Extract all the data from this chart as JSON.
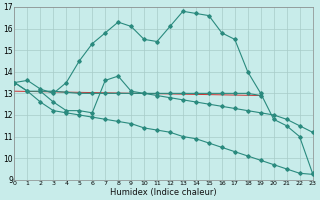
{
  "xlabel": "Humidex (Indice chaleur)",
  "xlim": [
    0,
    23
  ],
  "ylim": [
    9,
    17
  ],
  "yticks": [
    9,
    10,
    11,
    12,
    13,
    14,
    15,
    16,
    17
  ],
  "xticks": [
    0,
    1,
    2,
    3,
    4,
    5,
    6,
    7,
    8,
    9,
    10,
    11,
    12,
    13,
    14,
    15,
    16,
    17,
    18,
    19,
    20,
    21,
    22,
    23
  ],
  "line_color": "#2a8a7e",
  "red_line_color": "#cc3333",
  "bg_color": "#c8ecea",
  "grid_color": "#a8ccc8",
  "series": [
    {
      "x": [
        0,
        1,
        2,
        3,
        4,
        5,
        6,
        7,
        8,
        9,
        10,
        11,
        12,
        13,
        14,
        15,
        16,
        17,
        18,
        19,
        20,
        21,
        22,
        23
      ],
      "y": [
        13.5,
        13.6,
        13.2,
        13.0,
        13.5,
        14.5,
        15.3,
        15.8,
        16.3,
        16.1,
        15.5,
        15.4,
        16.1,
        16.8,
        16.7,
        16.6,
        15.8,
        15.5,
        14.0,
        13.0,
        11.8,
        11.5,
        11.0,
        9.3
      ]
    },
    {
      "x": [
        0,
        1,
        2,
        3,
        4,
        5,
        6,
        7,
        8,
        9,
        10,
        11,
        12,
        13,
        14,
        15,
        16,
        17,
        18,
        19
      ],
      "y": [
        13.5,
        13.1,
        13.1,
        13.1,
        13.05,
        13.0,
        13.0,
        13.0,
        13.0,
        13.0,
        13.0,
        13.0,
        13.0,
        13.0,
        13.0,
        13.0,
        13.0,
        13.0,
        13.0,
        12.9
      ]
    },
    {
      "x": [
        2,
        3,
        4,
        5,
        6,
        7,
        8,
        9,
        10,
        11,
        12,
        13,
        14,
        15,
        16,
        17,
        18,
        19,
        20,
        21,
        22,
        23
      ],
      "y": [
        13.1,
        12.6,
        12.2,
        12.2,
        12.1,
        13.6,
        13.8,
        13.1,
        13.0,
        12.9,
        12.8,
        12.7,
        12.6,
        12.5,
        12.4,
        12.3,
        12.2,
        12.1,
        12.0,
        11.8,
        11.5,
        11.2
      ]
    },
    {
      "x": [
        0,
        1,
        2,
        3,
        4,
        5,
        6,
        7,
        8,
        9,
        10,
        11,
        12,
        13,
        14,
        15,
        16,
        17,
        18,
        19,
        20,
        21,
        22,
        23
      ],
      "y": [
        13.5,
        13.1,
        12.6,
        12.2,
        12.1,
        12.0,
        11.9,
        11.8,
        11.7,
        11.6,
        11.4,
        11.3,
        11.2,
        11.0,
        10.9,
        10.7,
        10.5,
        10.3,
        10.1,
        9.9,
        9.7,
        9.5,
        9.3,
        9.25
      ]
    }
  ],
  "red_line": {
    "x": [
      0,
      19
    ],
    "y": [
      13.1,
      12.9
    ]
  }
}
